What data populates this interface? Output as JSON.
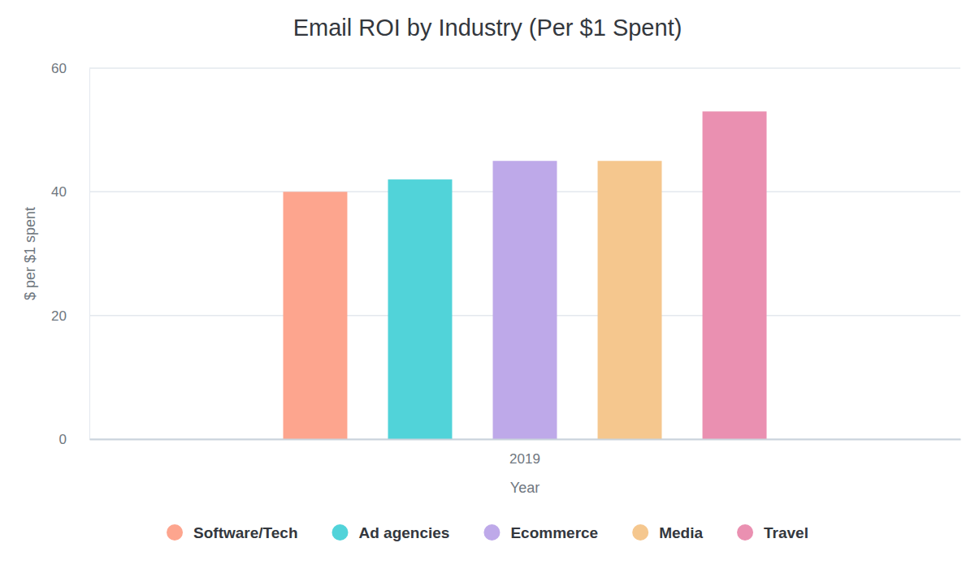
{
  "chart_data": {
    "type": "bar",
    "title": "Email ROI by Industry (Per $1 Spent)",
    "x_label": "Year",
    "y_label": "$ per $1 spent",
    "categories": [
      "2019"
    ],
    "series": [
      {
        "name": "Software/Tech",
        "color": "#fda58e",
        "values": [
          40
        ]
      },
      {
        "name": "Ad agencies",
        "color": "#51d3d9",
        "values": [
          42
        ]
      },
      {
        "name": "Ecommerce",
        "color": "#bea9e9",
        "values": [
          45
        ]
      },
      {
        "name": "Media",
        "color": "#f5c78e",
        "values": [
          45
        ]
      },
      {
        "name": "Travel",
        "color": "#ea90b1",
        "values": [
          53
        ]
      }
    ],
    "ylim": [
      0,
      60
    ],
    "yticks": [
      0,
      20,
      40,
      60
    ],
    "grid": true,
    "legend": "bottom"
  }
}
